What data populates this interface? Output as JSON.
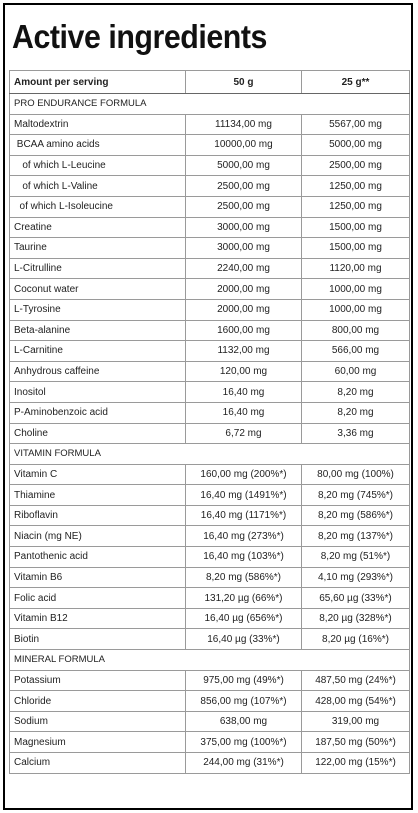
{
  "title": "Active ingredients",
  "header": {
    "col_name": "Amount per serving",
    "col_a": "50 g",
    "col_b": "25 g**"
  },
  "rows": [
    {
      "type": "section",
      "label": "PRO ENDURANCE FORMULA"
    },
    {
      "type": "item",
      "name": "Maltodextrin",
      "a": "11134,00 mg",
      "b": "5567,00 mg"
    },
    {
      "type": "item",
      "name": " BCAA amino acids",
      "a": "10000,00 mg",
      "b": "5000,00 mg"
    },
    {
      "type": "item",
      "name": "   of which L-Leucine",
      "a": "5000,00 mg",
      "b": "2500,00 mg"
    },
    {
      "type": "item",
      "name": "   of which L-Valine",
      "a": "2500,00 mg",
      "b": "1250,00 mg"
    },
    {
      "type": "item",
      "name": "  of which L-Isoleucine",
      "a": "2500,00 mg",
      "b": "1250,00 mg"
    },
    {
      "type": "item",
      "name": "Creatine",
      "a": "3000,00 mg",
      "b": "1500,00 mg"
    },
    {
      "type": "item",
      "name": "Taurine",
      "a": "3000,00 mg",
      "b": "1500,00 mg"
    },
    {
      "type": "item",
      "name": "L-Citrulline",
      "a": "2240,00 mg",
      "b": "1120,00 mg"
    },
    {
      "type": "item",
      "name": "Coconut water",
      "a": "2000,00 mg",
      "b": "1000,00 mg"
    },
    {
      "type": "item",
      "name": "L-Tyrosine",
      "a": "2000,00 mg",
      "b": "1000,00 mg"
    },
    {
      "type": "item",
      "name": "Beta-alanine",
      "a": "1600,00 mg",
      "b": "800,00 mg"
    },
    {
      "type": "item",
      "name": "L-Carnitine",
      "a": "1132,00 mg",
      "b": "566,00 mg"
    },
    {
      "type": "item",
      "name": "Anhydrous caffeine",
      "a": "120,00 mg",
      "b": "60,00 mg"
    },
    {
      "type": "item",
      "name": "Inositol",
      "a": "16,40 mg",
      "b": "8,20 mg"
    },
    {
      "type": "item",
      "name": "P-Aminobenzoic acid",
      "a": "16,40 mg",
      "b": "8,20 mg"
    },
    {
      "type": "item",
      "name": "Choline",
      "a": "6,72 mg",
      "b": "3,36 mg"
    },
    {
      "type": "section",
      "label": "VITAMIN FORMULA"
    },
    {
      "type": "item",
      "name": "Vitamin C",
      "a": "160,00 mg (200%*)",
      "b": "80,00 mg (100%)"
    },
    {
      "type": "item",
      "name": "Thiamine",
      "a": "16,40 mg (1491%*)",
      "b": "8,20 mg (745%*)"
    },
    {
      "type": "item",
      "name": "Riboflavin",
      "a": "16,40 mg (1171%*)",
      "b": "8,20 mg (586%*)"
    },
    {
      "type": "item",
      "name": "Niacin (mg NE)",
      "a": "16,40 mg (273%*)",
      "b": "8,20 mg (137%*)"
    },
    {
      "type": "item",
      "name": "Pantothenic acid",
      "a": "16,40 mg (103%*)",
      "b": "8,20 mg (51%*)"
    },
    {
      "type": "item",
      "name": "Vitamin B6",
      "a": "8,20 mg (586%*)",
      "b": "4,10 mg (293%*)"
    },
    {
      "type": "item",
      "name": "Folic acid",
      "a": "131,20 µg (66%*)",
      "b": "65,60 µg (33%*)"
    },
    {
      "type": "item",
      "name": "Vitamin B12",
      "a": "16,40 µg (656%*)",
      "b": "8,20 µg (328%*)"
    },
    {
      "type": "item",
      "name": "Biotin",
      "a": "16,40 µg (33%*)",
      "b": "8,20 µg (16%*)"
    },
    {
      "type": "section",
      "label": "MINERAL FORMULA"
    },
    {
      "type": "item",
      "name": "Potassium",
      "a": "975,00 mg (49%*)",
      "b": "487,50 mg (24%*)"
    },
    {
      "type": "item",
      "name": "Chloride",
      "a": "856,00 mg (107%*)",
      "b": "428,00 mg (54%*)"
    },
    {
      "type": "item",
      "name": "Sodium",
      "a": "638,00 mg",
      "b": "319,00 mg"
    },
    {
      "type": "item",
      "name": "Magnesium",
      "a": "375,00 mg (100%*)",
      "b": "187,50 mg (50%*)"
    },
    {
      "type": "item",
      "name": "Calcium",
      "a": "244,00 mg (31%*)",
      "b": "122,00 mg (15%*)"
    }
  ]
}
